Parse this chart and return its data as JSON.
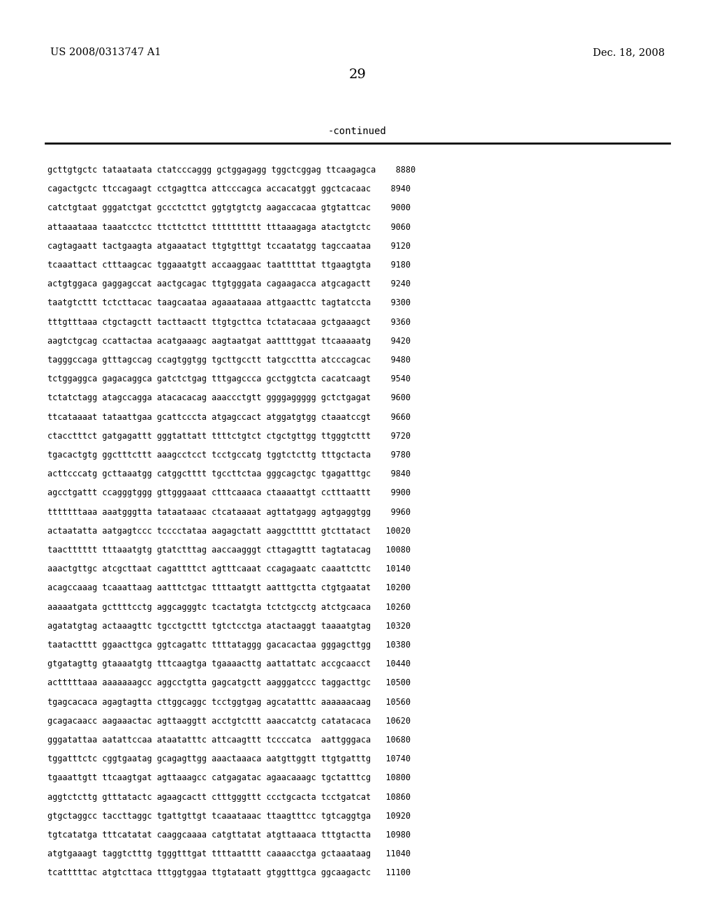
{
  "header_left": "US 2008/0313747 A1",
  "header_right": "Dec. 18, 2008",
  "page_number": "29",
  "continued_label": "-continued",
  "background_color": "#ffffff",
  "text_color": "#000000",
  "font_size": 8.5,
  "header_font_size": 10.5,
  "page_num_font_size": 14,
  "continued_font_size": 10,
  "sequence_lines": [
    "gcttgtgctc tataataata ctatcccaggg gctggagagg tggctcggag ttcaagagca    8880",
    "cagactgctc ttccagaagt cctgagttca attcccagca accacatggt ggctcacaac    8940",
    "catctgtaat gggatctgat gccctcttct ggtgtgtctg aagaccacaa gtgtattcac    9000",
    "attaaataaa taaatcctcc ttcttcttct tttttttttt tttaaagaga atactgtctc    9060",
    "cagtagaatt tactgaagta atgaaatact ttgtgtttgt tccaatatgg tagccaataa    9120",
    "tcaaattact ctttaagcac tggaaatgtt accaaggaac taatttttat ttgaagtgta    9180",
    "actgtggaca gaggagccat aactgcagac ttgtgggata cagaagacca atgcagactt    9240",
    "taatgtcttt tctcttacac taagcaataa agaaataaaa attgaacttc tagtatccta    9300",
    "tttgtttaaa ctgctagctt tacttaactt ttgtgcttca tctatacaaa gctgaaagct    9360",
    "aagtctgcag ccattactaa acatgaaagc aagtaatgat aattttggat ttcaaaaatg    9420",
    "tagggccaga gtttagccag ccagtggtgg tgcttgcctt tatgccttta atcccagcac    9480",
    "tctggaggca gagacaggca gatctctgag tttgagccca gcctggtcta cacatcaagt    9540",
    "tctatctagg atagccagga atacacacag aaaccctgtt ggggaggggg gctctgagat    9600",
    "ttcataaaat tataattgaa gcattcccta atgagccact atggatgtgg ctaaatccgt    9660",
    "ctacctttct gatgagattt gggtattatt ttttctgtct ctgctgttgg ttgggtcttt    9720",
    "tgacactgtg ggctttcttt aaagcctcct tcctgccatg tggtctcttg tttgctacta    9780",
    "acttcccatg gcttaaatgg catggctttt tgccttctaa gggcagctgc tgagatttgc    9840",
    "agcctgattt ccagggtggg gttgggaaat ctttcaaaca ctaaaattgt cctttaattt    9900",
    "tttttttaaa aaatgggtta tataataaac ctcataaaat agttatgagg agtgaggtgg    9960",
    "actaatatta aatgagtccc tcccctataa aagagctatt aaggcttttt gtcttatact   10020",
    "taactttttt tttaaatgtg gtatctttag aaccaagggt cttagagttt tagtatacag   10080",
    "aaactgttgc atcgcttaat cagattttct agtttcaaat ccagagaatc caaattcttc   10140",
    "acagccaaag tcaaattaag aatttctgac ttttaatgtt aatttgctta ctgtgaatat   10200",
    "aaaaatgata gcttttcctg aggcagggtc tcactatgta tctctgcctg atctgcaaca   10260",
    "agatatgtag actaaagttc tgcctgcttt tgtctcctga atactaaggt taaaatgtag   10320",
    "taatactttt ggaacttgca ggtcagattc ttttataggg gacacactaa gggagcttgg   10380",
    "gtgatagttg gtaaaatgtg tttcaagtga tgaaaacttg aattattatc accgcaacct   10440",
    "actttttaaa aaaaaaagcc aggcctgtta gagcatgctt aagggatccc taggacttgc   10500",
    "tgagcacaca agagtagtta cttggcaggc tcctggtgag agcatatttc aaaaaacaag   10560",
    "gcagacaacc aagaaactac agttaaggtt acctgtcttt aaaccatctg catatacaca   10620",
    "gggatattaa aatattccaa ataatatttc attcaagttt tccccatca  aattgggaca   10680",
    "tggatttctc cggtgaatag gcagagttgg aaactaaaca aatgttggtt ttgtgatttg   10740",
    "tgaaattgtt ttcaagtgat agttaaagcc catgagatac agaacaaagc tgctatttcg   10800",
    "aggtctcttg gtttatactc agaagcactt ctttgggttt ccctgcacta tcctgatcat   10860",
    "gtgctaggcc taccttaggc tgattgttgt tcaaataaac ttaagtttcc tgtcaggtga   10920",
    "tgtcatatga tttcatatat caaggcaaaa catgttatat atgttaaaca tttgtactta   10980",
    "atgtgaaagt taggtctttg tgggtttgat ttttaatttt caaaacctga gctaaataag   11040",
    "tcatttttac atgtcttaca tttggtggaa ttgtataatt gtggtttgca ggcaagactc   11100"
  ]
}
